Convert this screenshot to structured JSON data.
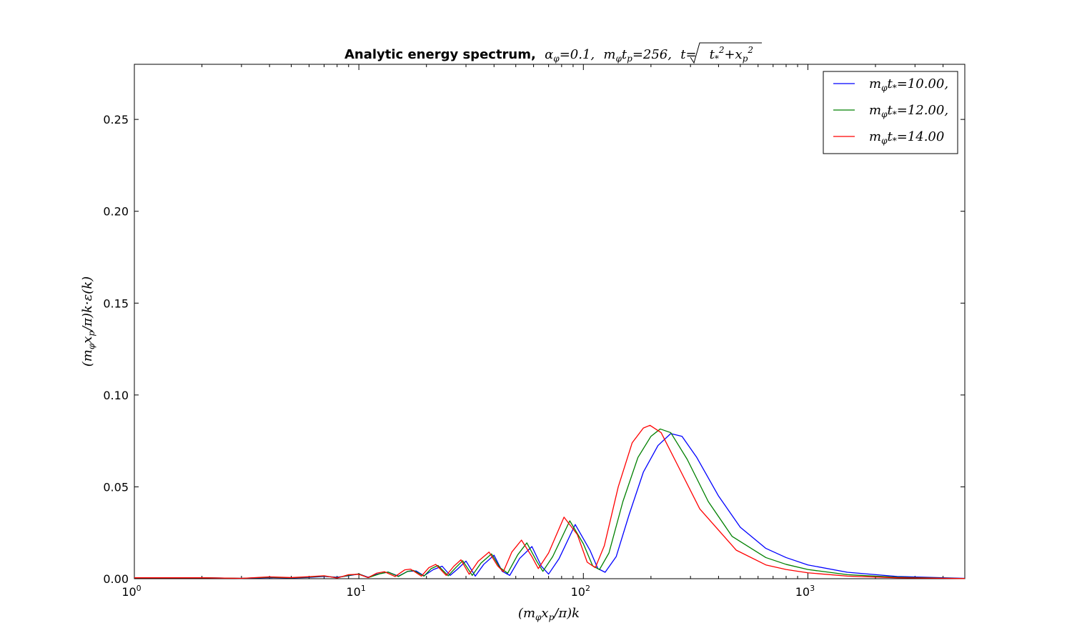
{
  "chart_data": {
    "type": "line",
    "title": "Analytic energy spectrum, α_φ=0.1, m_φt_p=256, t=√(t_*²+x_p²)",
    "title_parts": {
      "bold": "Analytic energy spectrum,",
      "alpha": "α",
      "alpha_sub": "φ",
      "alpha_val": "=0.1,",
      "m": "m",
      "m_sub": "φ",
      "t": "t",
      "t_sub": "p",
      "tp_val": "=256,",
      "t_eq": "t=",
      "root": "t",
      "root_sub": "*",
      "root_plus": "+x",
      "root_sub2": "p",
      "sup": "2"
    },
    "xlabel": "(m_φx_p/π)k",
    "ylabel": "(m_φx_p/π)k·ε(k)",
    "xscale": "log",
    "xlim": [
      1,
      5000
    ],
    "ylim": [
      0,
      0.28
    ],
    "x_ticks": [
      {
        "value": 1,
        "base": "10",
        "exp": "0"
      },
      {
        "value": 10,
        "base": "10",
        "exp": "1"
      },
      {
        "value": 100,
        "base": "10",
        "exp": "2"
      },
      {
        "value": 1000,
        "base": "10",
        "exp": "3"
      }
    ],
    "y_ticks": [
      {
        "value": 0.0,
        "label": "0.00"
      },
      {
        "value": 0.05,
        "label": "0.05"
      },
      {
        "value": 0.1,
        "label": "0.10"
      },
      {
        "value": 0.15,
        "label": "0.15"
      },
      {
        "value": 0.2,
        "label": "0.20"
      },
      {
        "value": 0.25,
        "label": "0.25"
      }
    ],
    "legend_position": "top-right",
    "series": [
      {
        "name": "m_φt_*=10.00,",
        "label_main": "m",
        "label_sub": "φ",
        "label_t": "t",
        "label_tsub": "*",
        "label_val": "=10.00,",
        "color": "#0000ff",
        "points": [
          [
            1.0,
            0.0005
          ],
          [
            2.0,
            0.0005
          ],
          [
            3.0,
            0.0002
          ],
          [
            4.0,
            0.0006
          ],
          [
            5.0,
            0.0004
          ],
          [
            6.0,
            0.0007
          ],
          [
            7.0,
            0.0012
          ],
          [
            8.0,
            0.0008
          ],
          [
            9.0,
            0.0016
          ],
          [
            10.0,
            0.0026
          ],
          [
            11.0,
            0.0008
          ],
          [
            12.0,
            0.0024
          ],
          [
            13.5,
            0.0036
          ],
          [
            15.0,
            0.0014
          ],
          [
            16.5,
            0.004
          ],
          [
            18.0,
            0.0042
          ],
          [
            19.5,
            0.0016
          ],
          [
            21.5,
            0.005
          ],
          [
            23.5,
            0.0068
          ],
          [
            25.5,
            0.0018
          ],
          [
            27.5,
            0.0052
          ],
          [
            30.0,
            0.0096
          ],
          [
            33.0,
            0.0014
          ],
          [
            36.0,
            0.0078
          ],
          [
            40.0,
            0.0128
          ],
          [
            43.5,
            0.004
          ],
          [
            47.0,
            0.0018
          ],
          [
            52.0,
            0.011
          ],
          [
            59.0,
            0.0175
          ],
          [
            65.0,
            0.0068
          ],
          [
            70.0,
            0.0025
          ],
          [
            78.0,
            0.011
          ],
          [
            92.0,
            0.0295
          ],
          [
            107.0,
            0.0155
          ],
          [
            116.0,
            0.0055
          ],
          [
            125.0,
            0.0035
          ],
          [
            140.0,
            0.012
          ],
          [
            160.0,
            0.035
          ],
          [
            185.0,
            0.058
          ],
          [
            215.0,
            0.0725
          ],
          [
            245.0,
            0.079
          ],
          [
            275.0,
            0.0775
          ],
          [
            320.0,
            0.066
          ],
          [
            400.0,
            0.045
          ],
          [
            500.0,
            0.028
          ],
          [
            650.0,
            0.0165
          ],
          [
            800.0,
            0.0115
          ],
          [
            1000.0,
            0.0075
          ],
          [
            1500.0,
            0.0035
          ],
          [
            2500.0,
            0.0012
          ],
          [
            5000.0,
            0.0002
          ]
        ]
      },
      {
        "name": "m_φt_*=12.00,",
        "label_main": "m",
        "label_sub": "φ",
        "label_t": "t",
        "label_tsub": "*",
        "label_val": "=12.00,",
        "color": "#008000",
        "points": [
          [
            1.0,
            0.0005
          ],
          [
            2.0,
            0.0005
          ],
          [
            3.0,
            0.0002
          ],
          [
            4.0,
            0.0008
          ],
          [
            5.0,
            0.0005
          ],
          [
            6.0,
            0.0009
          ],
          [
            7.0,
            0.0014
          ],
          [
            8.0,
            0.0006
          ],
          [
            9.0,
            0.0018
          ],
          [
            10.0,
            0.0026
          ],
          [
            11.0,
            0.0006
          ],
          [
            12.5,
            0.0028
          ],
          [
            13.5,
            0.0036
          ],
          [
            15.0,
            0.0012
          ],
          [
            16.5,
            0.004
          ],
          [
            17.5,
            0.0045
          ],
          [
            19.5,
            0.0014
          ],
          [
            21.0,
            0.0055
          ],
          [
            22.5,
            0.0072
          ],
          [
            25.0,
            0.0016
          ],
          [
            27.0,
            0.006
          ],
          [
            29.0,
            0.0098
          ],
          [
            32.0,
            0.0018
          ],
          [
            35.0,
            0.0085
          ],
          [
            39.0,
            0.0135
          ],
          [
            42.5,
            0.006
          ],
          [
            46.0,
            0.003
          ],
          [
            51.0,
            0.013
          ],
          [
            56.0,
            0.0195
          ],
          [
            62.0,
            0.0095
          ],
          [
            66.0,
            0.004
          ],
          [
            73.0,
            0.012
          ],
          [
            87.0,
            0.0315
          ],
          [
            100.0,
            0.019
          ],
          [
            110.0,
            0.007
          ],
          [
            118.0,
            0.005
          ],
          [
            130.0,
            0.014
          ],
          [
            150.0,
            0.042
          ],
          [
            175.0,
            0.066
          ],
          [
            200.0,
            0.0775
          ],
          [
            220.0,
            0.0815
          ],
          [
            245.0,
            0.0795
          ],
          [
            290.0,
            0.065
          ],
          [
            360.0,
            0.042
          ],
          [
            460.0,
            0.023
          ],
          [
            650.0,
            0.0115
          ],
          [
            800.0,
            0.0078
          ],
          [
            1000.0,
            0.005
          ],
          [
            1500.0,
            0.0022
          ],
          [
            2500.0,
            0.0008
          ],
          [
            5000.0,
            0.0001
          ]
        ]
      },
      {
        "name": "m_φt_*=14.00",
        "label_main": "m",
        "label_sub": "φ",
        "label_t": "t",
        "label_tsub": "*",
        "label_val": "=14.00",
        "color": "#ff0000",
        "points": [
          [
            1.0,
            0.0005
          ],
          [
            2.0,
            0.0005
          ],
          [
            3.0,
            0.0002
          ],
          [
            4.0,
            0.001
          ],
          [
            5.0,
            0.0006
          ],
          [
            6.0,
            0.0011
          ],
          [
            7.0,
            0.0016
          ],
          [
            8.0,
            0.0004
          ],
          [
            9.0,
            0.0022
          ],
          [
            10.0,
            0.0024
          ],
          [
            11.0,
            0.0006
          ],
          [
            12.0,
            0.003
          ],
          [
            13.0,
            0.0038
          ],
          [
            14.5,
            0.0012
          ],
          [
            16.0,
            0.0048
          ],
          [
            17.0,
            0.0052
          ],
          [
            19.0,
            0.0014
          ],
          [
            20.5,
            0.006
          ],
          [
            22.0,
            0.0078
          ],
          [
            24.5,
            0.0018
          ],
          [
            26.5,
            0.0068
          ],
          [
            28.5,
            0.0103
          ],
          [
            31.0,
            0.0024
          ],
          [
            34.0,
            0.0095
          ],
          [
            38.0,
            0.0145
          ],
          [
            41.5,
            0.007
          ],
          [
            44.0,
            0.0038
          ],
          [
            48.0,
            0.0145
          ],
          [
            53.0,
            0.021
          ],
          [
            59.0,
            0.012
          ],
          [
            63.0,
            0.0055
          ],
          [
            70.0,
            0.014
          ],
          [
            82.0,
            0.0335
          ],
          [
            94.0,
            0.024
          ],
          [
            104.0,
            0.009
          ],
          [
            113.0,
            0.006
          ],
          [
            124.0,
            0.018
          ],
          [
            143.0,
            0.05
          ],
          [
            165.0,
            0.074
          ],
          [
            185.0,
            0.082
          ],
          [
            198.0,
            0.0835
          ],
          [
            222.0,
            0.0795
          ],
          [
            260.0,
            0.063
          ],
          [
            330.0,
            0.038
          ],
          [
            480.0,
            0.0155
          ],
          [
            650.0,
            0.0075
          ],
          [
            800.0,
            0.005
          ],
          [
            1000.0,
            0.0032
          ],
          [
            1500.0,
            0.0014
          ],
          [
            2500.0,
            0.0005
          ],
          [
            5000.0,
            0.0001
          ]
        ]
      }
    ]
  }
}
